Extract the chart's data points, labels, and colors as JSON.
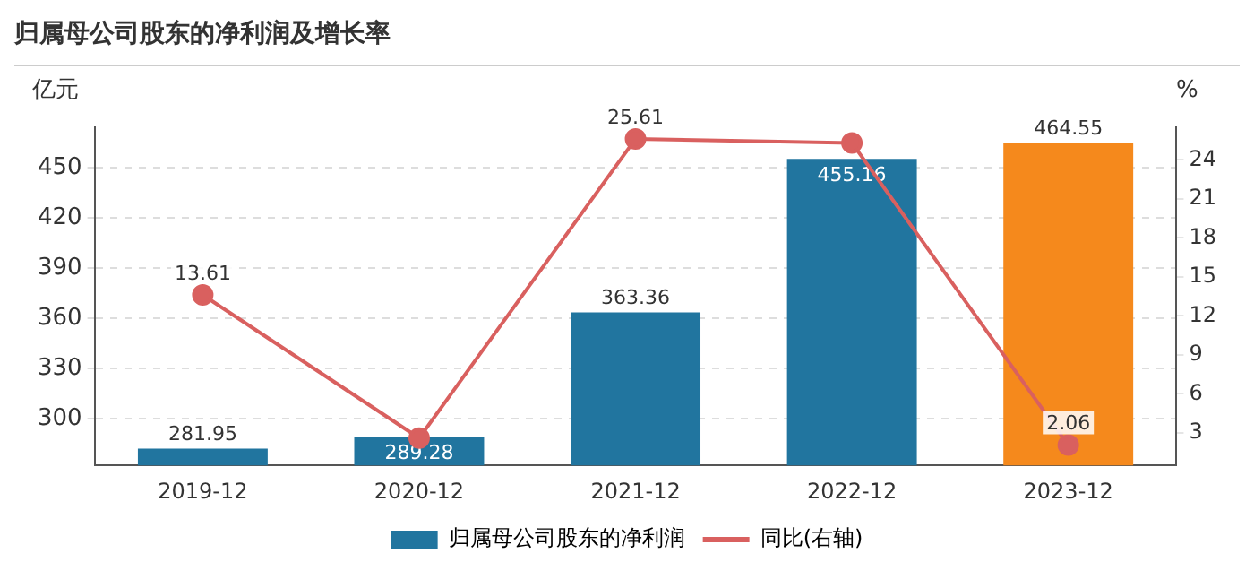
{
  "chart_data": {
    "type": "bar",
    "title": "归属母公司股东的净利润及增长率",
    "ylabel": "亿元",
    "y2label": "%",
    "categories": [
      "2019-12",
      "2020-12",
      "2021-12",
      "2022-12",
      "2023-12"
    ],
    "series": [
      {
        "name": "归属母公司股东的净利润",
        "color": "#21759f",
        "colors": [
          "#21759f",
          "#21759f",
          "#21759f",
          "#21759f",
          "#f5891c"
        ],
        "values": [
          281.95,
          289.28,
          363.36,
          455.16,
          464.55
        ],
        "value_labels": [
          "281.95",
          "289.28",
          "363.36",
          "455.16",
          "464.55"
        ]
      },
      {
        "name": "同比(右轴)",
        "type": "line",
        "axis": "y2",
        "color": "#d9605f",
        "marker": "circle",
        "values": [
          13.61,
          2.6,
          25.61,
          25.3,
          2.06
        ],
        "value_labels": [
          "13.61",
          null,
          "25.61",
          null,
          "2.06"
        ]
      }
    ],
    "ylim": [
      272,
      474
    ],
    "yticks": [
      300,
      330,
      360,
      390,
      420,
      450
    ],
    "y2lim": [
      0.5,
      26.5
    ],
    "y2ticks": [
      3,
      6,
      9,
      12,
      15,
      18,
      21,
      24
    ],
    "grid": "y",
    "legend": "bottom"
  }
}
